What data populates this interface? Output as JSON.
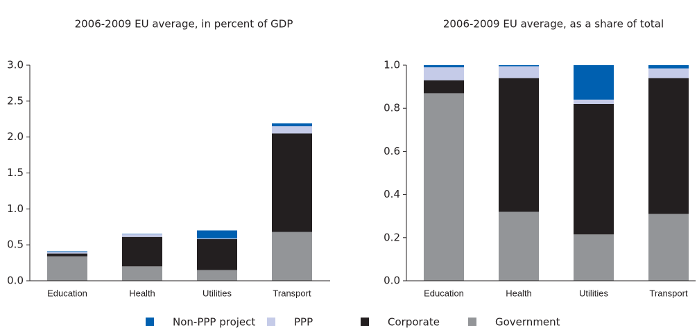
{
  "chart_data": [
    {
      "type": "bar",
      "stacked": true,
      "title": "2006-2009 EU average, in percent of GDP",
      "categories": [
        "Education",
        "Health",
        "Utilities",
        "Transport"
      ],
      "series": [
        {
          "name": "Non-PPP project",
          "color": "#0060b0",
          "values": [
            0.01,
            0.005,
            0.11,
            0.04
          ]
        },
        {
          "name": "PPP",
          "color": "#c5cbe8",
          "values": [
            0.02,
            0.04,
            0.01,
            0.1
          ]
        },
        {
          "name": "Corporate",
          "color": "#231f20",
          "values": [
            0.04,
            0.41,
            0.43,
            1.37
          ]
        },
        {
          "name": "Government",
          "color": "#939598",
          "values": [
            0.34,
            0.2,
            0.15,
            0.68
          ]
        }
      ],
      "ylim": [
        0,
        3
      ],
      "yticks": [
        {
          "value": 0,
          "label": "0.0"
        },
        0.5,
        {
          "value": 1,
          "label": "1.0"
        },
        1.5,
        {
          "value": 2,
          "label": "2.0"
        },
        2.5,
        {
          "value": 3,
          "label": "3.0"
        }
      ]
    },
    {
      "type": "bar",
      "stacked": true,
      "title": "2006-2009 EU average, as a share of total",
      "categories": [
        "Education",
        "Health",
        "Utilities",
        "Transport"
      ],
      "series": [
        {
          "color": "#0060b0",
          "values": [
            0.01,
            0.005,
            0.16,
            0.015
          ]
        },
        {
          "color": "#c5cbe8",
          "values": [
            0.06,
            0.055,
            0.02,
            0.045
          ]
        },
        {
          "color": "#231f20",
          "values": [
            0.06,
            0.62,
            0.605,
            0.63
          ]
        },
        {
          "color": "#939598",
          "values": [
            0.87,
            0.32,
            0.215,
            0.31
          ]
        }
      ],
      "ylim": [
        0,
        1
      ],
      "yticks": [
        {
          "value": 0,
          "label": "0.0"
        },
        0.2,
        0.4,
        0.6,
        0.8,
        {
          "value": 1,
          "label": "1.0"
        }
      ]
    }
  ]
}
